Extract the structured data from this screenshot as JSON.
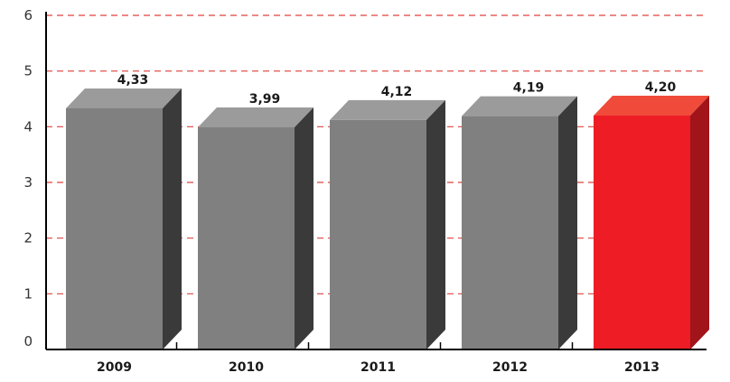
{
  "chart_data": {
    "type": "bar",
    "categories": [
      "2009",
      "2010",
      "2011",
      "2012",
      "2013"
    ],
    "values": [
      4.33,
      3.99,
      4.12,
      4.19,
      4.2
    ],
    "value_labels": [
      "4,33",
      "3,99",
      "4,12",
      "4,19",
      "4,20"
    ],
    "y_ticks": [
      "0",
      "1",
      "2",
      "3",
      "4",
      "5",
      "6"
    ],
    "ylim": [
      0,
      6
    ],
    "grid": true,
    "grid_style": "dashed",
    "highlight_index": 4,
    "colors": {
      "bar_front": "#808080",
      "bar_top": "#9b9b9b",
      "bar_side": "#3a3a3a",
      "highlight_front": "#ee1c25",
      "highlight_top": "#f04a3a",
      "highlight_side": "#a1141a",
      "grid": "#e0413c",
      "axis": "#000000"
    }
  }
}
